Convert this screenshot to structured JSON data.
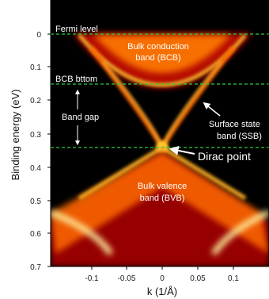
{
  "figure": {
    "y_axis_label": "Binding energy (eV)",
    "x_axis_label": "k (1/Å)",
    "y_ticks": [
      "0",
      "0.1",
      "0.2",
      "0.3",
      "0.4",
      "0.5",
      "0.6",
      "0.7"
    ],
    "x_ticks": [
      "-0.1",
      "-0.05",
      "0",
      "0.05",
      "0.1"
    ],
    "y_range": [
      0,
      0.7
    ],
    "x_range": [
      -0.15,
      0.15
    ]
  },
  "annotations": {
    "fermi_level": "Fermi level",
    "bcb_bottom": "BCB bttom",
    "band_gap": "Band gap",
    "bcb_line1": "Bulk conduction",
    "bcb_line2": "band (BCB)",
    "ssb_line1": "Surface state",
    "ssb_line2": "band (SSB)",
    "dirac_point": "Dirac point",
    "bvb_line1": "Bulk valence",
    "bvb_line2": "band (BVB)"
  },
  "reference_lines_eV": {
    "fermi_level": 0.0,
    "bcb_bottom": 0.155,
    "dirac_point": 0.34
  },
  "colors": {
    "background": "#000000",
    "guide_line": "#2ecc40",
    "intensity_high": "#ffffc0",
    "intensity_mid": "#ff8a00",
    "intensity_low": "#b00000"
  }
}
